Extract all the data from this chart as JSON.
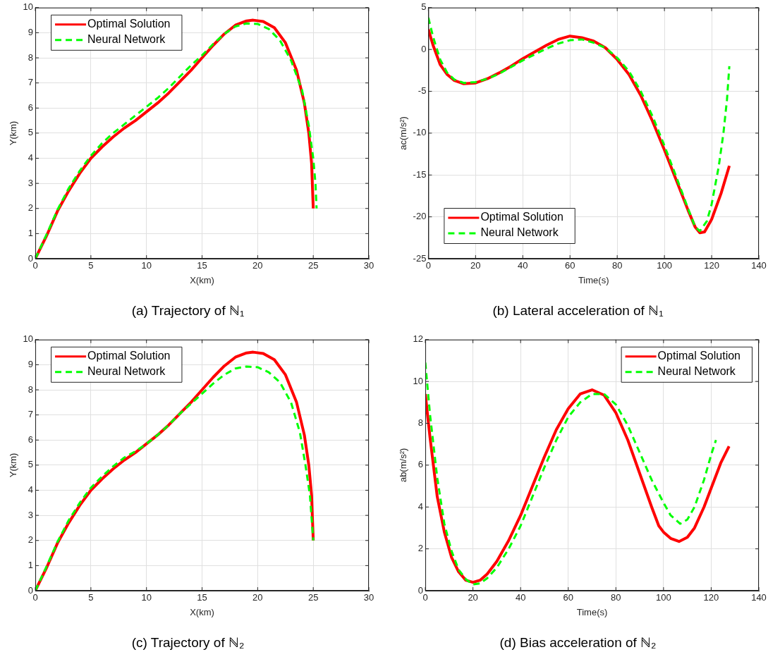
{
  "chart_data": [
    {
      "type": "line",
      "title": "(a) Trajectory of ℕ₁",
      "xlabel": "X(km)",
      "ylabel": "Y(km)",
      "xlim": [
        0,
        30
      ],
      "xticks": [
        0,
        5,
        10,
        15,
        20,
        25,
        30
      ],
      "ylim": [
        0,
        10
      ],
      "yticks": [
        0,
        1,
        2,
        3,
        4,
        5,
        6,
        7,
        8,
        9,
        10
      ],
      "grid": true,
      "legend": "top left",
      "marker": "none",
      "series": [
        {
          "name": "Optimal Solution",
          "color": "#ff0000",
          "line_style": "solid",
          "x": [
            0,
            1,
            2,
            3,
            4,
            5,
            6,
            7,
            8,
            9,
            10,
            11,
            12,
            13,
            14,
            15,
            16,
            17,
            18,
            19,
            19.6,
            20.5,
            21.5,
            22.5,
            23.5,
            24.2,
            24.6,
            24.85,
            25
          ],
          "values": [
            0,
            0.9,
            1.9,
            2.7,
            3.4,
            4.0,
            4.45,
            4.85,
            5.2,
            5.5,
            5.85,
            6.2,
            6.6,
            7.05,
            7.5,
            8.0,
            8.5,
            8.95,
            9.3,
            9.47,
            9.5,
            9.45,
            9.2,
            8.6,
            7.5,
            6.2,
            5.0,
            3.8,
            2.0
          ]
        },
        {
          "name": "Neural Network",
          "color": "#00ff00",
          "line_style": "dashed",
          "x": [
            0,
            1,
            2,
            3,
            4,
            5,
            6,
            7,
            8,
            9,
            10,
            11,
            12,
            13,
            14,
            15,
            16,
            17,
            18,
            19,
            20,
            21,
            22,
            23,
            24,
            24.6,
            25,
            25.2,
            25.3
          ],
          "values": [
            0,
            0.95,
            1.95,
            2.8,
            3.5,
            4.1,
            4.6,
            5.0,
            5.35,
            5.7,
            6.05,
            6.4,
            6.8,
            7.25,
            7.7,
            8.1,
            8.55,
            8.95,
            9.25,
            9.37,
            9.35,
            9.15,
            8.7,
            7.9,
            6.7,
            5.3,
            4.0,
            3.0,
            2.0
          ]
        }
      ]
    },
    {
      "type": "line",
      "title": "(b) Lateral acceleration of ℕ₁",
      "xlabel": "Time(s)",
      "ylabel": "ac(m/s²)",
      "xlim": [
        0,
        140
      ],
      "xticks": [
        0,
        20,
        40,
        60,
        80,
        100,
        120,
        140
      ],
      "ylim": [
        -25,
        5
      ],
      "yticks": [
        -25,
        -20,
        -15,
        -10,
        -5,
        0,
        5
      ],
      "grid": true,
      "legend": "bottom left",
      "marker": "none",
      "series": [
        {
          "name": "Optimal Solution",
          "color": "#ff0000",
          "line_style": "solid",
          "x": [
            0,
            2,
            5,
            8,
            11,
            15,
            20,
            25,
            30,
            35,
            40,
            45,
            50,
            55,
            60,
            65,
            70,
            75,
            80,
            85,
            90,
            95,
            100,
            105,
            110,
            113,
            115,
            117,
            120,
            124,
            127.5
          ],
          "values": [
            2.4,
            0.5,
            -1.8,
            -3.0,
            -3.7,
            -4.1,
            -4.0,
            -3.5,
            -2.8,
            -2.0,
            -1.1,
            -0.3,
            0.5,
            1.2,
            1.6,
            1.4,
            1.0,
            0.2,
            -1.2,
            -3.0,
            -5.5,
            -8.6,
            -12.0,
            -15.6,
            -19.2,
            -21.2,
            -21.9,
            -21.8,
            -20.3,
            -17.2,
            -13.9
          ]
        },
        {
          "name": "Neural Network",
          "color": "#00ff00",
          "line_style": "dashed",
          "x": [
            0,
            2,
            5,
            8,
            11,
            15,
            20,
            25,
            30,
            35,
            40,
            45,
            50,
            55,
            60,
            65,
            70,
            75,
            80,
            85,
            90,
            95,
            100,
            105,
            110,
            113,
            115,
            118,
            120,
            123,
            125,
            126.5,
            127.5
          ],
          "values": [
            3.8,
            1.5,
            -1.2,
            -2.8,
            -3.6,
            -4.0,
            -3.9,
            -3.5,
            -2.9,
            -2.1,
            -1.3,
            -0.6,
            0.1,
            0.7,
            1.1,
            1.2,
            0.8,
            0.2,
            -1.0,
            -2.6,
            -5.0,
            -8.0,
            -11.5,
            -15.2,
            -19.0,
            -21.2,
            -21.7,
            -20.5,
            -18.5,
            -14.0,
            -10.0,
            -6.0,
            -2.0
          ]
        }
      ]
    },
    {
      "type": "line",
      "title": "(c) Trajectory of ℕ₂",
      "xlabel": "X(km)",
      "ylabel": "Y(km)",
      "xlim": [
        0,
        30
      ],
      "xticks": [
        0,
        5,
        10,
        15,
        20,
        25,
        30
      ],
      "ylim": [
        0,
        10
      ],
      "yticks": [
        0,
        1,
        2,
        3,
        4,
        5,
        6,
        7,
        8,
        9,
        10
      ],
      "grid": true,
      "legend": "top left",
      "marker": "none",
      "series": [
        {
          "name": "Optimal Solution",
          "color": "#ff0000",
          "line_style": "solid",
          "x": [
            0,
            1,
            2,
            3,
            4,
            5,
            6,
            7,
            8,
            9,
            10,
            11,
            12,
            13,
            14,
            15,
            16,
            17,
            18,
            19,
            19.6,
            20.5,
            21.5,
            22.5,
            23.5,
            24.2,
            24.6,
            24.85,
            25
          ],
          "values": [
            0,
            0.9,
            1.9,
            2.7,
            3.4,
            4.0,
            4.45,
            4.85,
            5.2,
            5.5,
            5.85,
            6.2,
            6.6,
            7.05,
            7.5,
            8.0,
            8.5,
            8.95,
            9.3,
            9.47,
            9.5,
            9.45,
            9.2,
            8.6,
            7.5,
            6.2,
            5.0,
            3.8,
            2.0
          ]
        },
        {
          "name": "Neural Network",
          "color": "#00ff00",
          "line_style": "dashed",
          "x": [
            0,
            1,
            2,
            3,
            4,
            5,
            6,
            7,
            8,
            9,
            10,
            11,
            12,
            13,
            14,
            15,
            16,
            17,
            18,
            19,
            20,
            21,
            22,
            23,
            23.8,
            24.3,
            24.7,
            25
          ],
          "values": [
            0,
            0.95,
            1.95,
            2.8,
            3.5,
            4.1,
            4.55,
            4.95,
            5.3,
            5.55,
            5.85,
            6.2,
            6.6,
            7.05,
            7.45,
            7.85,
            8.25,
            8.6,
            8.85,
            8.93,
            8.9,
            8.7,
            8.3,
            7.5,
            6.3,
            5.0,
            3.8,
            2.0
          ]
        }
      ]
    },
    {
      "type": "line",
      "title": "(d) Bias acceleration of ℕ₂",
      "xlabel": "Time(s)",
      "ylabel": "ab(m/s²)",
      "xlim": [
        0,
        140
      ],
      "xticks": [
        0,
        20,
        40,
        60,
        80,
        100,
        120,
        140
      ],
      "ylim": [
        0,
        12
      ],
      "yticks": [
        0,
        2,
        4,
        6,
        8,
        10,
        12
      ],
      "grid": true,
      "legend": "top right",
      "marker": "none",
      "series": [
        {
          "name": "Optimal Solution",
          "color": "#ff0000",
          "line_style": "solid",
          "x": [
            0,
            2,
            5,
            8,
            11,
            14,
            17,
            20,
            23,
            26,
            30,
            35,
            40,
            45,
            50,
            55,
            60,
            65,
            70,
            75,
            80,
            85,
            90,
            95,
            98,
            100,
            103,
            106.5,
            110,
            113,
            117,
            120,
            124,
            127.5
          ],
          "values": [
            9.4,
            7.3,
            4.5,
            2.8,
            1.6,
            0.9,
            0.5,
            0.4,
            0.5,
            0.8,
            1.4,
            2.4,
            3.6,
            5.0,
            6.4,
            7.7,
            8.7,
            9.4,
            9.6,
            9.35,
            8.5,
            7.2,
            5.6,
            4.0,
            3.1,
            2.8,
            2.5,
            2.35,
            2.55,
            3.0,
            4.0,
            4.9,
            6.1,
            6.9
          ]
        },
        {
          "name": "Neural Network",
          "color": "#00ff00",
          "line_style": "dashed",
          "x": [
            0,
            2,
            5,
            8,
            11,
            14,
            17,
            20,
            23,
            26,
            30,
            35,
            40,
            45,
            50,
            55,
            60,
            65,
            70,
            75,
            80,
            85,
            90,
            95,
            100,
            103,
            107,
            110,
            113,
            117,
            120,
            122
          ],
          "values": [
            10.9,
            8.4,
            5.4,
            3.2,
            1.9,
            1.0,
            0.55,
            0.3,
            0.35,
            0.6,
            1.1,
            2.0,
            3.1,
            4.5,
            5.9,
            7.2,
            8.3,
            9.0,
            9.4,
            9.4,
            8.9,
            7.9,
            6.6,
            5.3,
            4.2,
            3.6,
            3.2,
            3.4,
            4.0,
            5.3,
            6.5,
            7.2
          ]
        }
      ]
    }
  ]
}
